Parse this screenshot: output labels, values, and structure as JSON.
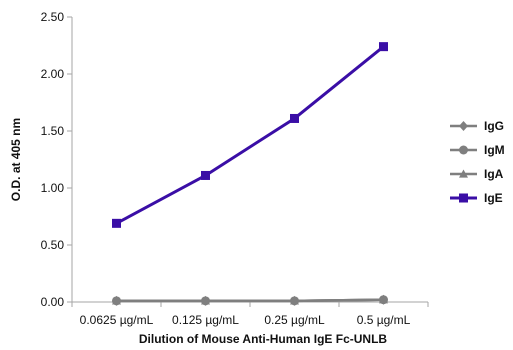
{
  "chart_data": {
    "type": "line",
    "title": "",
    "xlabel": "Dilution of Mouse Anti-Human IgE Fc-UNLB",
    "ylabel": "O.D. at 405 nm",
    "categories": [
      "0.0625 µg/mL",
      "0.125 µg/mL",
      "0.25 µg/mL",
      "0.5 µg/mL"
    ],
    "ylim": [
      0,
      2.5
    ],
    "yticks": [
      "0.00",
      "0.50",
      "1.00",
      "1.50",
      "2.00",
      "2.50"
    ],
    "grid": false,
    "legend_position": "right",
    "series": [
      {
        "name": "IgG",
        "values": [
          0.01,
          0.01,
          0.01,
          0.02
        ],
        "color": "#7f7f7f",
        "marker": "diamond"
      },
      {
        "name": "IgM",
        "values": [
          0.01,
          0.01,
          0.01,
          0.02
        ],
        "color": "#7f7f7f",
        "marker": "circle"
      },
      {
        "name": "IgA",
        "values": [
          0.01,
          0.01,
          0.01,
          0.02
        ],
        "color": "#7f7f7f",
        "marker": "triangle"
      },
      {
        "name": "IgE",
        "values": [
          0.69,
          1.11,
          1.61,
          2.24
        ],
        "color": "#3a0ea6",
        "marker": "square"
      }
    ]
  }
}
